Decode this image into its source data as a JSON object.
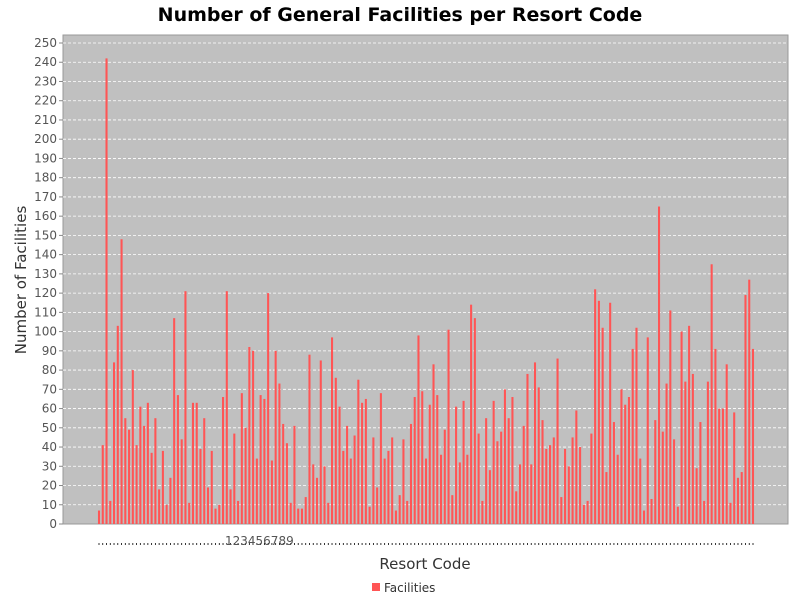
{
  "chart_data": {
    "type": "bar",
    "title": "Number of General Facilities per Resort Code",
    "xlabel": "Resort Code",
    "ylabel": "Number of Facilities",
    "ylim": [
      0,
      250
    ],
    "ytick_step": 10,
    "x_tick_labels_visible": "123456789",
    "grid": true,
    "legend": "bottom-center",
    "colors": {
      "bar": "#ff5555",
      "plot_bg": "#c0c0c0",
      "grid": "#ffffff"
    },
    "series": [
      {
        "name": "Facilities",
        "values": [
          7,
          41,
          242,
          12,
          84,
          103,
          148,
          55,
          49,
          80,
          41,
          61,
          51,
          63,
          37,
          55,
          18,
          38,
          10,
          24,
          107,
          67,
          44,
          121,
          11,
          63,
          63,
          39,
          55,
          19,
          38,
          8,
          10,
          66,
          121,
          18,
          47,
          12,
          68,
          50,
          92,
          90,
          34,
          67,
          65,
          120,
          33,
          90,
          73,
          52,
          42,
          11,
          51,
          8,
          8,
          14,
          88,
          31,
          24,
          85,
          30,
          11,
          97,
          76,
          61,
          38,
          51,
          34,
          46,
          75,
          63,
          65,
          9,
          45,
          19,
          68,
          34,
          38,
          45,
          7,
          15,
          44,
          12,
          52,
          66,
          98,
          69,
          34,
          62,
          83,
          67,
          36,
          49,
          101,
          15,
          61,
          32,
          64,
          36,
          114,
          107,
          47,
          12,
          55,
          28,
          64,
          43,
          48,
          70,
          55,
          66,
          17,
          31,
          51,
          78,
          31,
          84,
          71,
          54,
          39,
          41,
          45,
          86,
          14,
          39,
          30,
          45,
          59,
          40,
          10,
          12,
          47,
          122,
          116,
          102,
          27,
          115,
          53,
          36,
          70,
          62,
          66,
          91,
          102,
          34,
          7,
          97,
          13,
          54,
          165,
          48,
          73,
          111,
          44,
          9,
          100,
          74,
          103,
          78,
          29,
          53,
          12,
          74,
          135,
          91,
          60,
          60,
          83,
          11,
          58,
          24,
          27,
          119,
          127,
          91
        ]
      }
    ]
  }
}
